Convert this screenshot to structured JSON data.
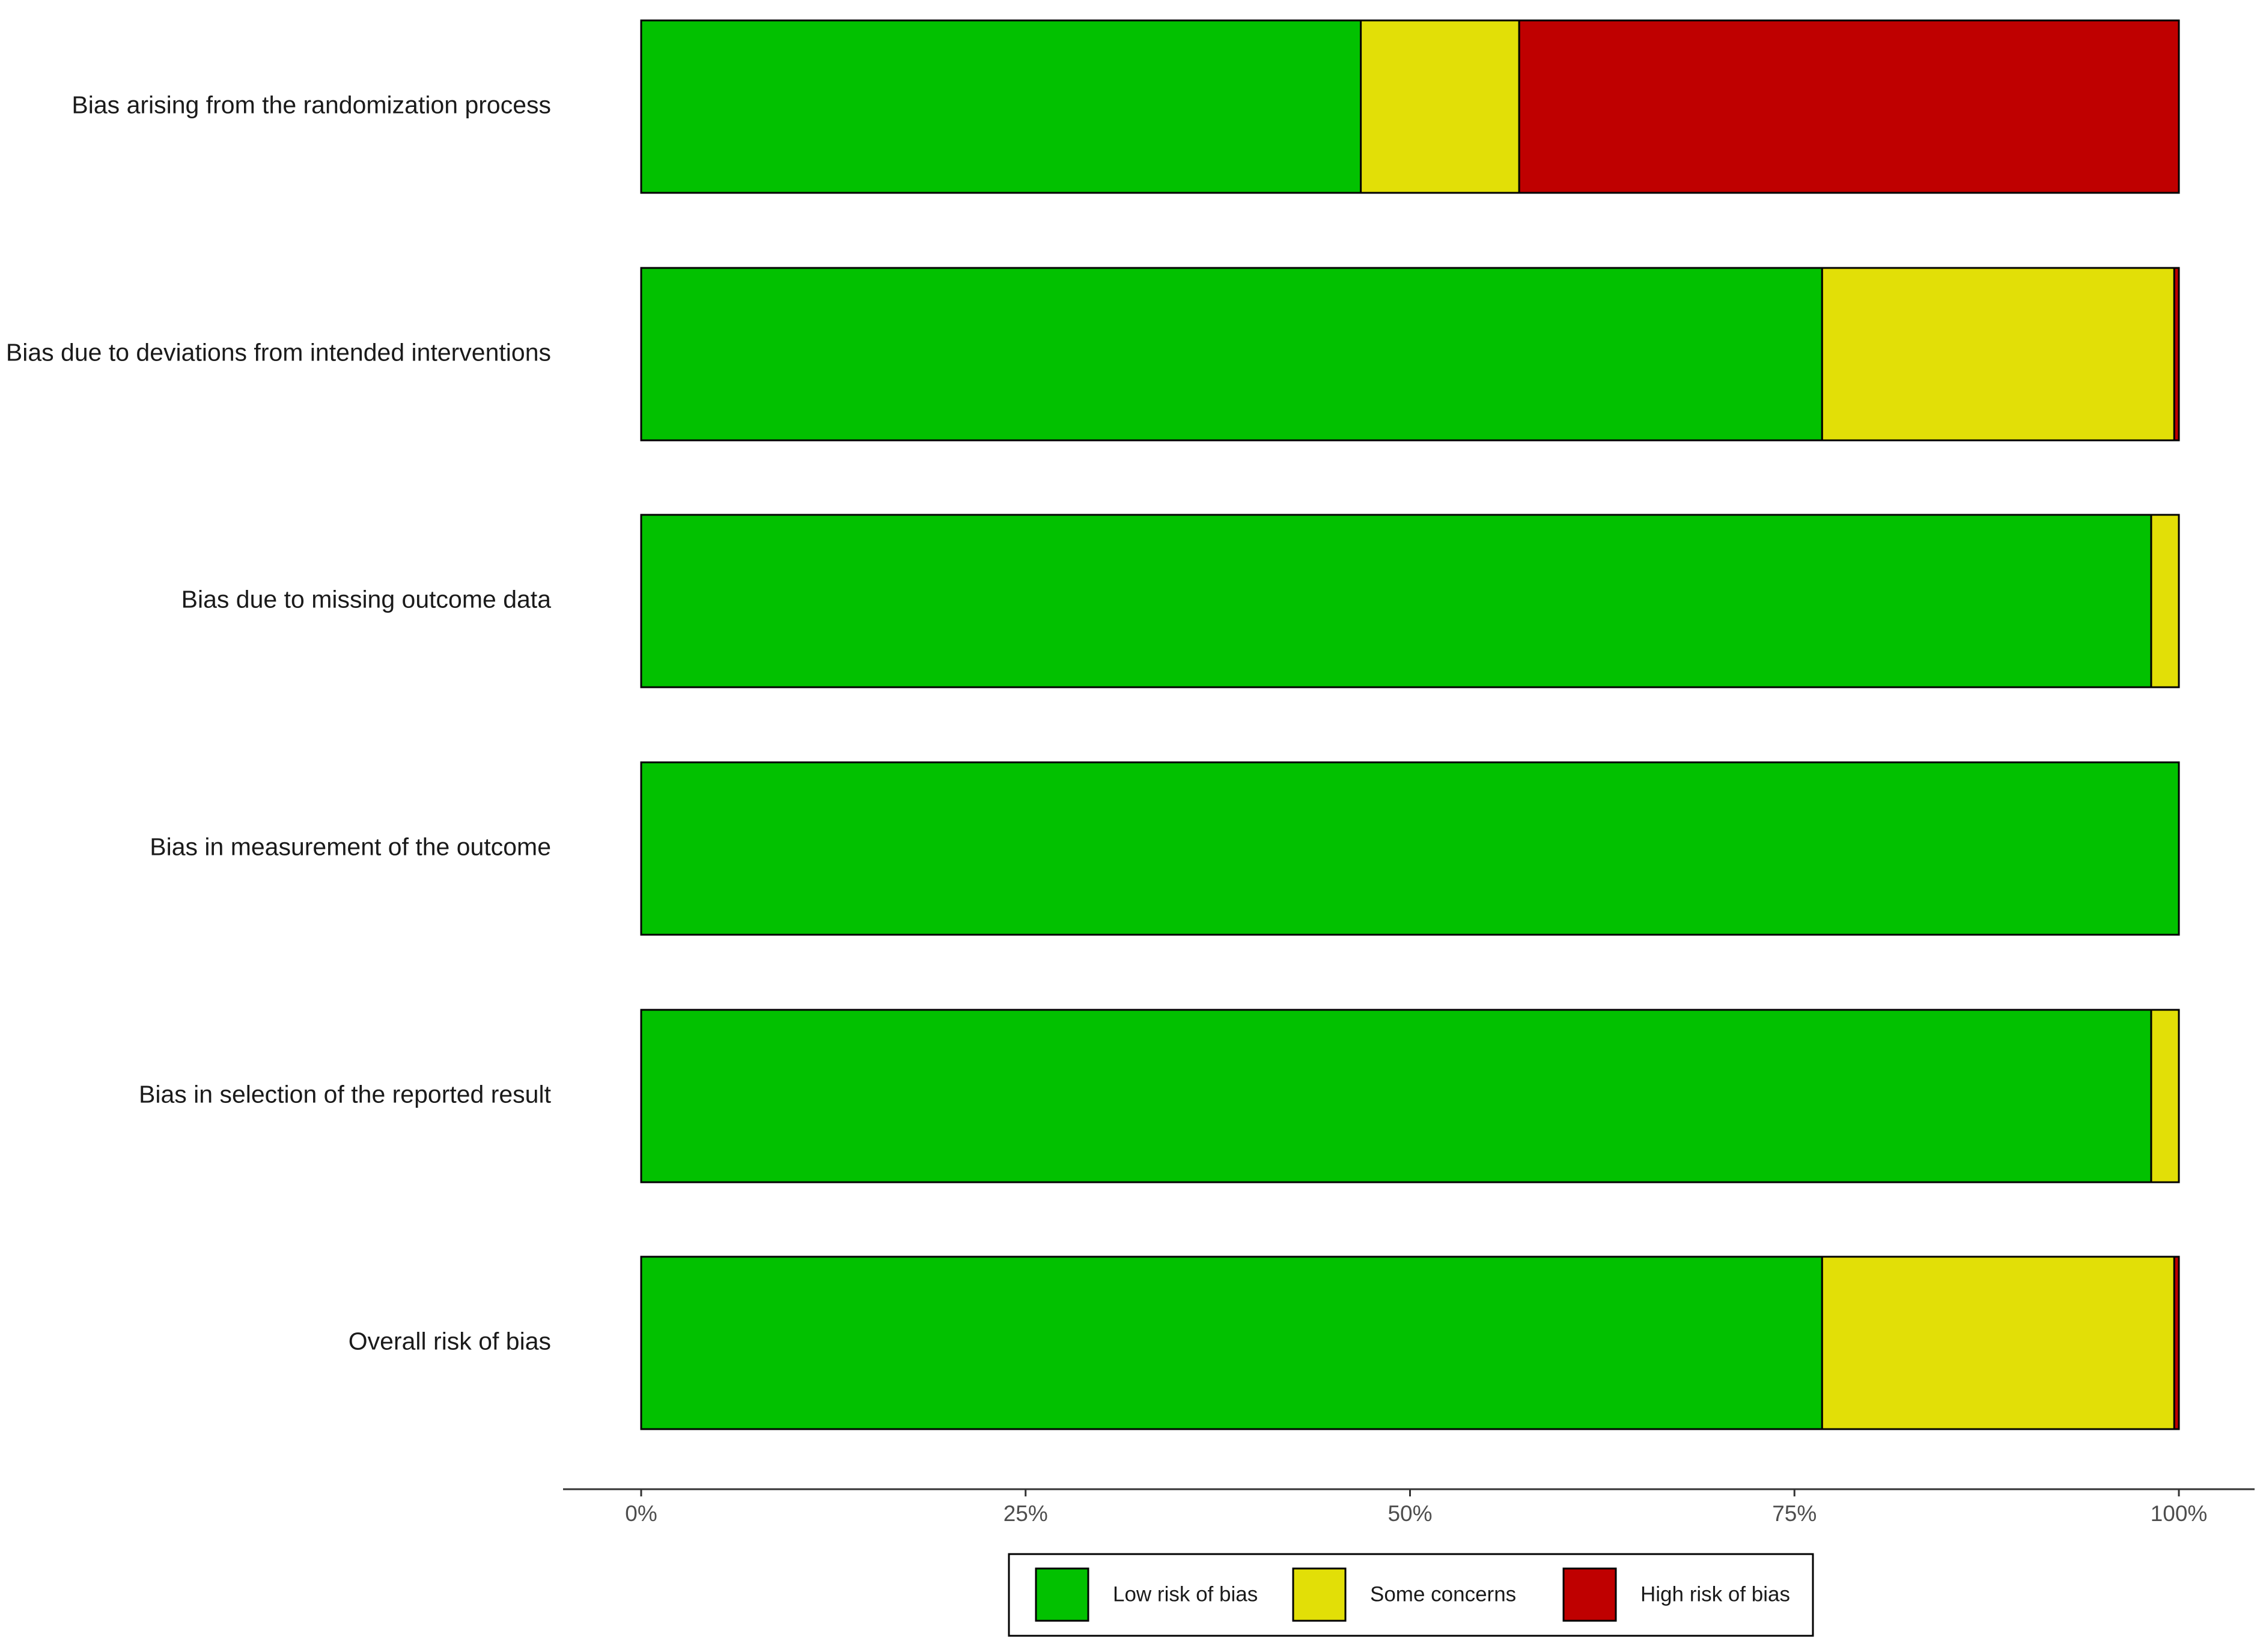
{
  "chart_data": {
    "type": "bar",
    "orientation": "horizontal",
    "stacked": true,
    "categories": [
      "Bias arising from the randomization process",
      "Bias due to deviations from intended interventions",
      "Bias due to missing outcome data",
      "Bias in measurement of the outcome",
      "Bias in selection of the reported result",
      "Overall risk of bias"
    ],
    "series": [
      {
        "name": "Low risk of bias",
        "color": "#02C100",
        "values": [
          46.8,
          76.8,
          98.2,
          100,
          98.2,
          76.8
        ]
      },
      {
        "name": "Some concerns",
        "color": "#E2DF07",
        "values": [
          10.3,
          22.9,
          1.8,
          0,
          1.8,
          22.9
        ]
      },
      {
        "name": "High risk of bias",
        "color": "#BF0000",
        "values": [
          42.9,
          0.3,
          0,
          0,
          0,
          0.3
        ]
      }
    ],
    "x_ticks": [
      "0%",
      "25%",
      "50%",
      "75%",
      "100%"
    ],
    "xlim": [
      0,
      100
    ],
    "grid": false,
    "legend_position": "bottom",
    "title": "",
    "xlabel": "",
    "ylabel": ""
  }
}
